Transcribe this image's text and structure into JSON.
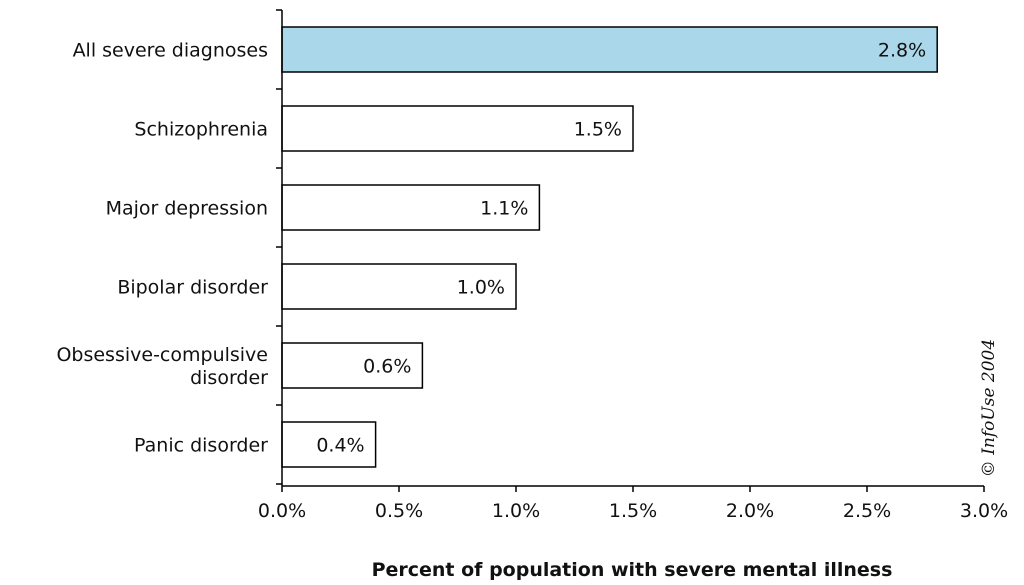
{
  "chart_data": {
    "type": "bar",
    "orientation": "horizontal",
    "categories": [
      [
        "All severe diagnoses"
      ],
      [
        "Schizophrenia"
      ],
      [
        "Major depression"
      ],
      [
        "Bipolar disorder"
      ],
      [
        "Obsessive-compulsive",
        "disorder"
      ],
      [
        "Panic disorder"
      ]
    ],
    "values": [
      2.8,
      1.5,
      1.1,
      1.0,
      0.6,
      0.4
    ],
    "value_labels": [
      "2.8%",
      "1.5%",
      "1.1%",
      "1.0%",
      "0.6%",
      "0.4%"
    ],
    "xlim": [
      0,
      3.0
    ],
    "xticks": [
      0,
      0.5,
      1.0,
      1.5,
      2.0,
      2.5,
      3.0
    ],
    "xtick_labels": [
      "0.0%",
      "0.5%",
      "1.0%",
      "1.5%",
      "2.0%",
      "2.5%",
      "3.0%"
    ],
    "xlabel": "Percent of population with severe mental illness",
    "ylabel": "",
    "title": "",
    "grid": false,
    "colors": {
      "highlight_bar": "#aad8ea",
      "default_bar": "#ffffff",
      "stroke": "#000000"
    },
    "highlight_index": 0
  },
  "credit": "© InfoUse 2004"
}
